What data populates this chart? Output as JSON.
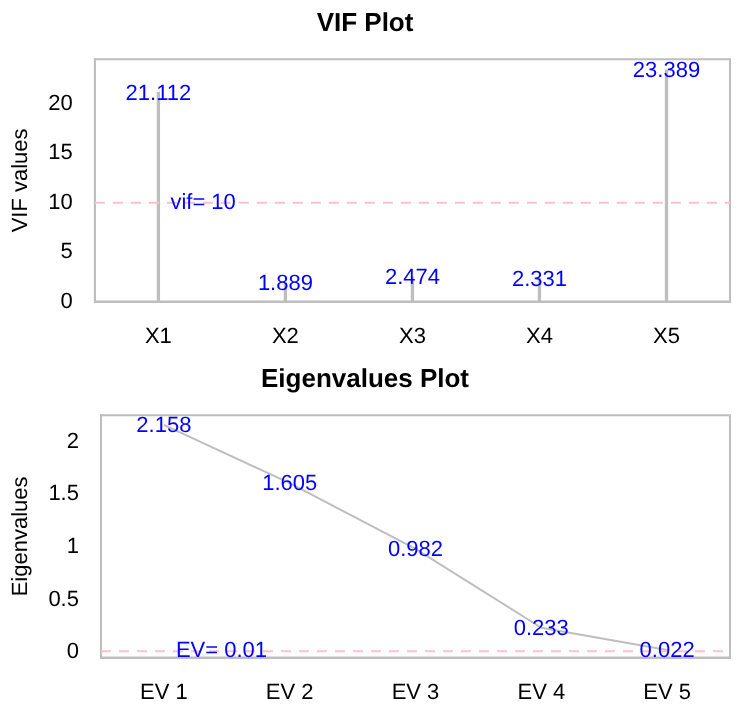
{
  "chart_data": [
    {
      "type": "bar",
      "title": "VIF Plot",
      "ylabel": "VIF values",
      "categories": [
        "X1",
        "X2",
        "X3",
        "X4",
        "X5"
      ],
      "values": [
        21.112,
        1.889,
        2.474,
        2.331,
        23.389
      ],
      "color": "#bebebe",
      "data_labels": true,
      "ylim": [
        0,
        24.5
      ],
      "yticks": [
        0,
        5,
        10,
        15,
        20
      ],
      "grid": false,
      "legend": false,
      "ref_lines": [
        {
          "axis": "y",
          "value": 10,
          "label": "vif= 10",
          "color": "#ffc0cb",
          "line_style": "dashed"
        }
      ]
    },
    {
      "type": "line",
      "title": "Eigenvalues Plot",
      "ylabel": "Eigenvalues",
      "categories": [
        "EV 1",
        "EV 2",
        "EV 3",
        "EV 4",
        "EV 5"
      ],
      "values": [
        2.158,
        1.605,
        0.982,
        0.233,
        0.022
      ],
      "color": "#bebebe",
      "data_labels": true,
      "marker": "none",
      "line_style": "solid",
      "ylim": [
        -0.05,
        2.25
      ],
      "yticks": [
        0,
        0.5,
        1,
        1.5,
        2
      ],
      "grid": false,
      "legend": false,
      "ref_lines": [
        {
          "axis": "y",
          "value": 0.01,
          "label": "EV= 0.01",
          "color": "#ffc0cb",
          "line_style": "dashed"
        }
      ]
    }
  ]
}
